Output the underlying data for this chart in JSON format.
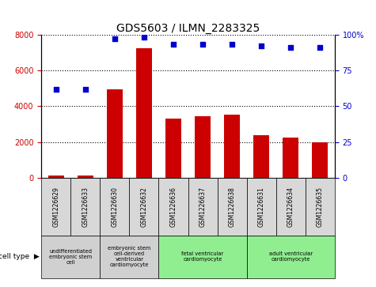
{
  "title": "GDS5603 / ILMN_2283325",
  "samples": [
    "GSM1226629",
    "GSM1226633",
    "GSM1226630",
    "GSM1226632",
    "GSM1226636",
    "GSM1226637",
    "GSM1226638",
    "GSM1226631",
    "GSM1226634",
    "GSM1226635"
  ],
  "counts": [
    150,
    150,
    4950,
    7250,
    3300,
    3450,
    3550,
    2400,
    2250,
    2000
  ],
  "percentiles": [
    62,
    62,
    97,
    98,
    93,
    93,
    93,
    92,
    91,
    91
  ],
  "ylim_left": [
    0,
    8000
  ],
  "ylim_right": [
    0,
    100
  ],
  "yticks_left": [
    0,
    2000,
    4000,
    6000,
    8000
  ],
  "yticks_right": [
    0,
    25,
    50,
    75,
    100
  ],
  "bar_color": "#cc0000",
  "dot_color": "#0000cc",
  "grid_color": "#000000",
  "cell_types": [
    {
      "label": "undifferentiated\nembryonic stem\ncell",
      "start": 0,
      "end": 2,
      "color": "#d0d0d0"
    },
    {
      "label": "embryonic stem\ncell-derived\nventricular\ncardiomyocyte",
      "start": 2,
      "end": 4,
      "color": "#d0d0d0"
    },
    {
      "label": "fetal ventricular\ncardiomyocyte",
      "start": 4,
      "end": 7,
      "color": "#90ee90"
    },
    {
      "label": "adult ventricular\ncardiomyocyte",
      "start": 7,
      "end": 10,
      "color": "#90ee90"
    }
  ],
  "legend_count_color": "#cc0000",
  "legend_pct_color": "#0000cc",
  "background_color": "#ffffff",
  "title_fontsize": 10,
  "tick_fontsize": 7,
  "label_fontsize": 7
}
